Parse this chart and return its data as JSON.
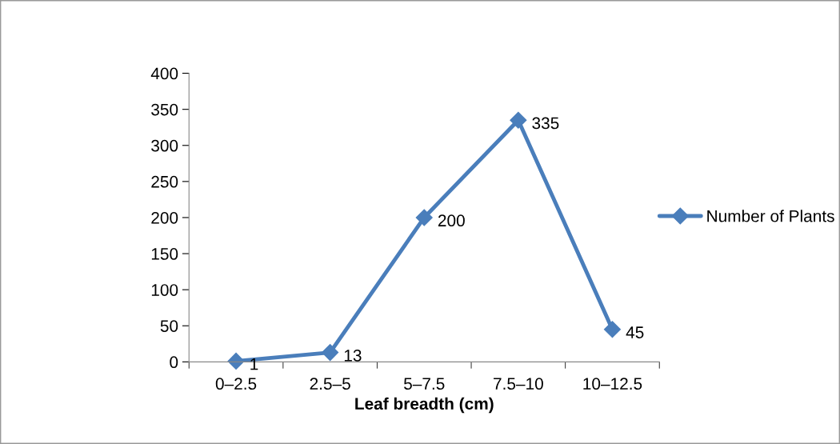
{
  "chart_data": {
    "type": "line",
    "xlabel": "Leaf breadth (cm)",
    "categories": [
      "0–2.5",
      "2.5–5",
      "5–7.5",
      "7.5–10",
      "10–12.5"
    ],
    "series": [
      {
        "name": "Number of Plants",
        "color": "#4a7ebb",
        "values": [
          1,
          13,
          200,
          335,
          45
        ]
      }
    ],
    "ylim": [
      0,
      400
    ],
    "yticks": [
      0,
      50,
      100,
      150,
      200,
      250,
      300,
      350,
      400
    ],
    "grid": false,
    "legend": "right",
    "marker": "diamond",
    "line_style": "solid",
    "data_labels": true
  }
}
